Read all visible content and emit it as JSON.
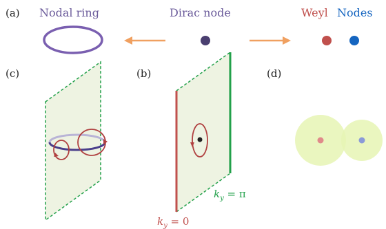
{
  "panels": {
    "a": {
      "label": "(a)",
      "nodal_ring": "Nodal ring",
      "dirac_node": "Dirac node",
      "weyl": "Weyl",
      "nodes": "Nodes"
    },
    "b": {
      "label": "(b)",
      "ky_zero": "k",
      "ky_zero_sub": "y",
      "ky_zero_eq": " = 0",
      "ky_pi": "k",
      "ky_pi_sub": "y",
      "ky_pi_eq": " = π"
    },
    "c": {
      "label": "(c)"
    },
    "d": {
      "label": "(d)"
    }
  },
  "colors": {
    "purple": "#6a5a9a",
    "ring": "#7a5fb0",
    "dirac": "#4a3f70",
    "weyl_red": "#c0504d",
    "weyl_blue": "#1565c0",
    "orange": "#f0a060",
    "green": "#22a04a",
    "plane_fill": "#eef3e2",
    "loop_red": "#b04040",
    "halo": "#e6f5b4"
  }
}
